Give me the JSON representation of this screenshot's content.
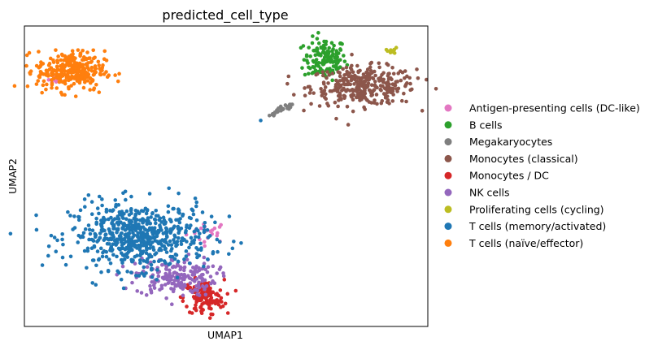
{
  "chart_data": {
    "type": "scatter",
    "title": "predicted_cell_type",
    "xlabel": "UMAP1",
    "ylabel": "UMAP2",
    "xlim": [
      0,
      100
    ],
    "ylim": [
      0,
      100
    ],
    "grid": false,
    "ticks": false,
    "legend_position": "right",
    "series": [
      {
        "name": "Antigen-presenting cells (DC-like)",
        "color": "#e377c2",
        "clusters": [
          {
            "cx": 45.5,
            "cy": 31.5,
            "sx": 2.6,
            "sy": 1.8,
            "n": 22
          },
          {
            "cx": 7.5,
            "cy": 81.5,
            "sx": 0.9,
            "sy": 1.0,
            "n": 6
          }
        ]
      },
      {
        "name": "B cells",
        "color": "#2ca02c",
        "clusters": [
          {
            "cx": 74.5,
            "cy": 89.0,
            "sx": 2.6,
            "sy": 3.5,
            "n": 140
          }
        ]
      },
      {
        "name": "Megakaryocytes",
        "color": "#7f7f7f",
        "clusters": [
          {
            "x0": 60.5,
            "y0": 70.0,
            "x1": 67.0,
            "y1": 74.5,
            "spread": 0.5,
            "n": 28
          }
        ]
      },
      {
        "name": "Monocytes (classical)",
        "color": "#8c564b",
        "clusters": [
          {
            "cx": 84.0,
            "cy": 80.0,
            "sx": 6.5,
            "sy": 3.2,
            "n": 320
          }
        ]
      },
      {
        "name": "Monocytes / DC",
        "color": "#d62728",
        "clusters": [
          {
            "cx": 44.5,
            "cy": 9.5,
            "sx": 2.5,
            "sy": 3.0,
            "n": 130
          }
        ]
      },
      {
        "name": "NK cells",
        "color": "#9467bd",
        "clusters": [
          {
            "cx": 37.5,
            "cy": 16.5,
            "sx": 5.0,
            "sy": 3.2,
            "n": 190
          }
        ]
      },
      {
        "name": "Proliferating cells (cycling)",
        "color": "#bcbd22",
        "clusters": [
          {
            "cx": 91.0,
            "cy": 91.5,
            "sx": 1.4,
            "sy": 0.6,
            "n": 12
          }
        ]
      },
      {
        "name": "T cells (memory/activated)",
        "color": "#1f77b4",
        "clusters": [
          {
            "cx": 28.5,
            "cy": 30.0,
            "sx": 8.5,
            "sy": 5.5,
            "n": 620
          },
          {
            "cx": 58.5,
            "cy": 68.5,
            "sx": 0.2,
            "sy": 0.2,
            "n": 1
          }
        ]
      },
      {
        "name": "T cells (naïve/effector)",
        "color": "#ff7f0e",
        "clusters": [
          {
            "cx": 11.5,
            "cy": 85.0,
            "sx": 4.2,
            "sy": 3.3,
            "n": 300
          }
        ]
      }
    ]
  }
}
